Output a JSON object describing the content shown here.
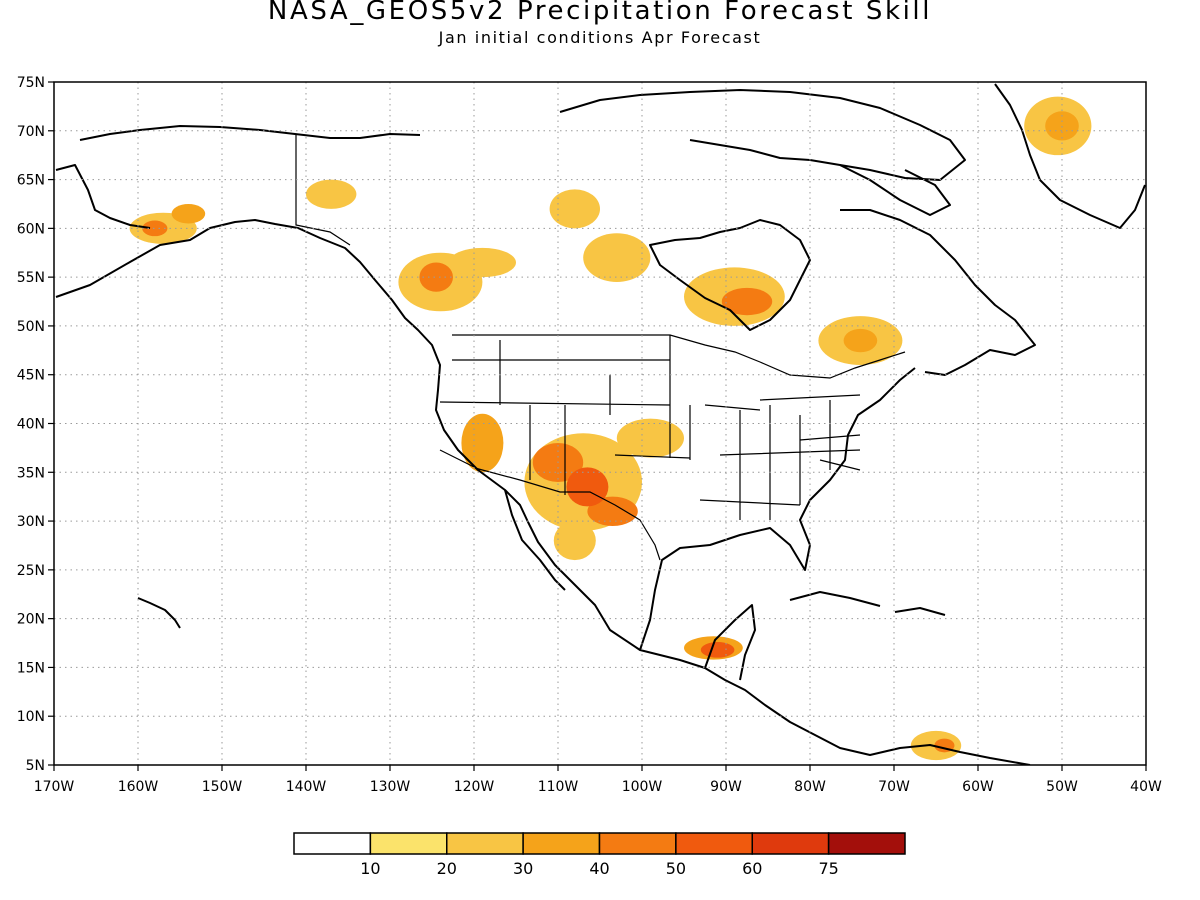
{
  "title": "NASA_GEOS5v2 Precipitation Forecast Skill",
  "subtitle": "Jan initial conditions  Apr Forecast",
  "map": {
    "lon_range": [
      -170,
      -40
    ],
    "lat_range": [
      5,
      75
    ],
    "lon_ticks": [
      -170,
      -160,
      -150,
      -140,
      -130,
      -120,
      -110,
      -100,
      -90,
      -80,
      -70,
      -60,
      -50,
      -40
    ],
    "lat_ticks": [
      5,
      10,
      15,
      20,
      25,
      30,
      35,
      40,
      45,
      50,
      55,
      60,
      65,
      70,
      75
    ],
    "lon_tick_labels": [
      "170W",
      "160W",
      "150W",
      "140W",
      "130W",
      "120W",
      "110W",
      "100W",
      "90W",
      "80W",
      "70W",
      "60W",
      "50W",
      "40W"
    ],
    "lat_tick_labels": [
      "5N",
      "10N",
      "15N",
      "20N",
      "25N",
      "30N",
      "35N",
      "40N",
      "45N",
      "50N",
      "55N",
      "60N",
      "65N",
      "70N",
      "75N"
    ],
    "grid": "dotted"
  },
  "colorbar": {
    "labels": [
      "10",
      "20",
      "30",
      "40",
      "50",
      "60",
      "75"
    ],
    "colors": [
      "#ffffff",
      "#fbe36b",
      "#f8c544",
      "#f5a31a",
      "#f47b12",
      "#f05a0e",
      "#df3a0d",
      "#a30f0b"
    ]
  },
  "skill_areas": [
    {
      "lon": -157,
      "lat": 60,
      "rx": 4,
      "ry": 1.6,
      "level": 2
    },
    {
      "lon": -158,
      "lat": 60,
      "rx": 1.5,
      "ry": 0.8,
      "level": 4
    },
    {
      "lon": -154,
      "lat": 61.5,
      "rx": 2,
      "ry": 1,
      "level": 3
    },
    {
      "lon": -137,
      "lat": 63.5,
      "rx": 3,
      "ry": 1.5,
      "level": 2
    },
    {
      "lon": -124,
      "lat": 54.5,
      "rx": 5,
      "ry": 3,
      "level": 2
    },
    {
      "lon": -124.5,
      "lat": 55,
      "rx": 2,
      "ry": 1.5,
      "level": 4
    },
    {
      "lon": -119,
      "lat": 56.5,
      "rx": 4,
      "ry": 1.5,
      "level": 2
    },
    {
      "lon": -108,
      "lat": 62,
      "rx": 3,
      "ry": 2,
      "level": 2
    },
    {
      "lon": -103,
      "lat": 57,
      "rx": 4,
      "ry": 2.5,
      "level": 2
    },
    {
      "lon": -89,
      "lat": 53,
      "rx": 6,
      "ry": 3,
      "level": 2
    },
    {
      "lon": -87.5,
      "lat": 52.5,
      "rx": 3,
      "ry": 1.4,
      "level": 4
    },
    {
      "lon": -74,
      "lat": 48.5,
      "rx": 5,
      "ry": 2.5,
      "level": 2
    },
    {
      "lon": -74,
      "lat": 48.5,
      "rx": 2,
      "ry": 1.2,
      "level": 3
    },
    {
      "lon": -50.5,
      "lat": 70.5,
      "rx": 4,
      "ry": 3,
      "level": 2
    },
    {
      "lon": -50,
      "lat": 70.5,
      "rx": 2,
      "ry": 1.5,
      "level": 3
    },
    {
      "lon": -107,
      "lat": 34,
      "rx": 7,
      "ry": 5,
      "level": 2
    },
    {
      "lon": -110,
      "lat": 36,
      "rx": 3,
      "ry": 2,
      "level": 4
    },
    {
      "lon": -106.5,
      "lat": 33.5,
      "rx": 2.5,
      "ry": 2,
      "level": 5
    },
    {
      "lon": -103.5,
      "lat": 31,
      "rx": 3,
      "ry": 1.5,
      "level": 4
    },
    {
      "lon": -119,
      "lat": 38,
      "rx": 2.5,
      "ry": 3,
      "level": 3
    },
    {
      "lon": -99,
      "lat": 38.5,
      "rx": 4,
      "ry": 2,
      "level": 2
    },
    {
      "lon": -108,
      "lat": 28,
      "rx": 2.5,
      "ry": 2,
      "level": 2
    },
    {
      "lon": -91.5,
      "lat": 17,
      "rx": 3.5,
      "ry": 1.2,
      "level": 3
    },
    {
      "lon": -91,
      "lat": 16.8,
      "rx": 2,
      "ry": 0.8,
      "level": 5
    },
    {
      "lon": -65,
      "lat": 7,
      "rx": 3,
      "ry": 1.5,
      "level": 2
    },
    {
      "lon": -64,
      "lat": 7,
      "rx": 1.2,
      "ry": 0.7,
      "level": 4
    }
  ]
}
